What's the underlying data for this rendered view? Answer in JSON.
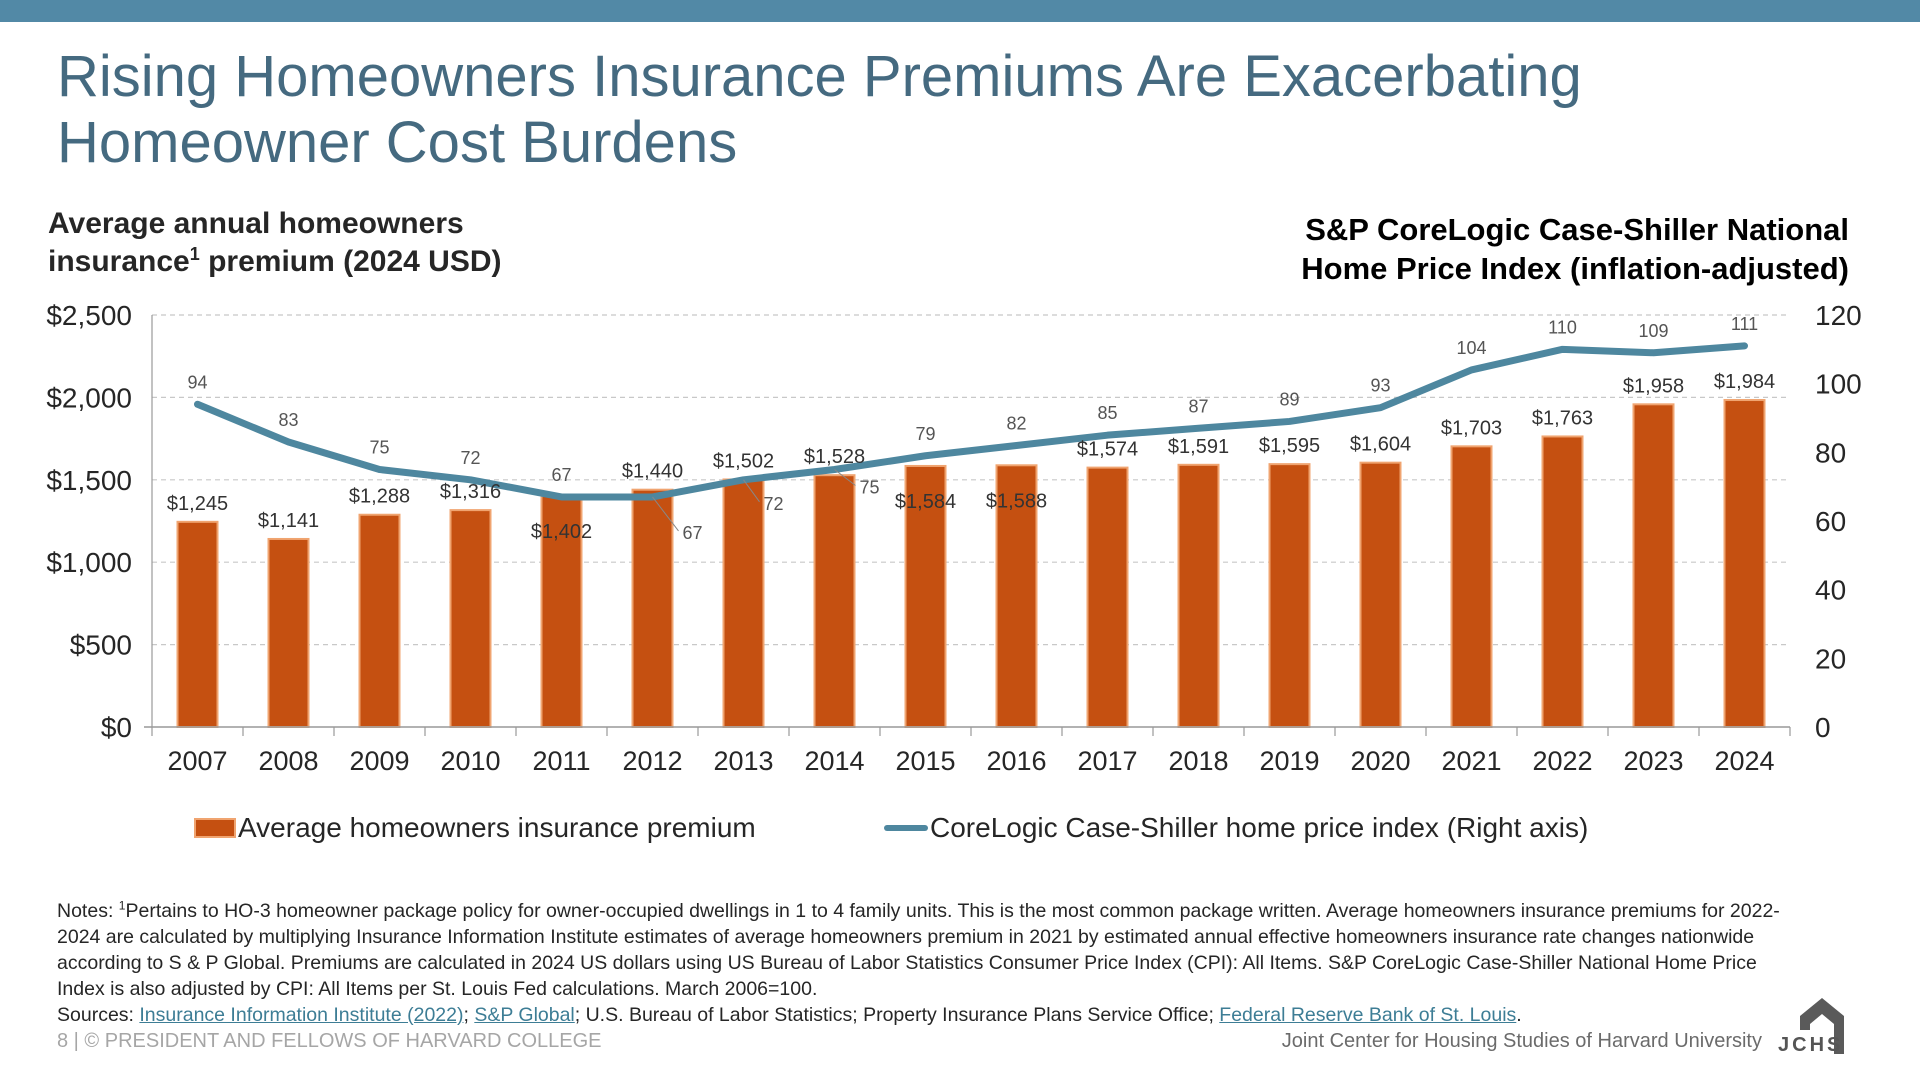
{
  "header": {
    "title_line1": "Rising Homeowners Insurance Premiums Are Exacerbating",
    "title_line2": "Homeowner Cost Burdens"
  },
  "left_subtitle": {
    "line1": "Average annual homeowners",
    "line2_pre": "insurance",
    "line2_sup": "1",
    "line2_post": " premium (2024 USD)"
  },
  "right_subtitle": {
    "line1": "S&P CoreLogic Case-Shiller National",
    "line2": "Home Price Index (inflation-adjusted)"
  },
  "colors": {
    "topbar": "#5289a6",
    "title": "#456a80",
    "bar": "#c55011",
    "bar_edge": "#f0a470",
    "line": "#4e879f",
    "link": "#3d7d95"
  },
  "chart_data": {
    "type": "bar+line",
    "categories": [
      "2007",
      "2008",
      "2009",
      "2010",
      "2011",
      "2012",
      "2013",
      "2014",
      "2015",
      "2016",
      "2017",
      "2018",
      "2019",
      "2020",
      "2021",
      "2022",
      "2023",
      "2024"
    ],
    "series": [
      {
        "name": "Average homeowners insurance premium",
        "type": "bar",
        "axis": "left",
        "values": [
          1245,
          1141,
          1288,
          1316,
          1402,
          1440,
          1502,
          1528,
          1584,
          1588,
          1574,
          1591,
          1595,
          1604,
          1703,
          1763,
          1958,
          1984
        ],
        "labels": [
          "$1,245",
          "$1,141",
          "$1,288",
          "$1,316",
          "$1,402",
          "$1,440",
          "$1,502",
          "$1,528",
          "$1,584",
          "$1,588",
          "$1,574",
          "$1,591",
          "$1,595",
          "$1,604",
          "$1,703",
          "$1,763",
          "$1,958",
          "$1,984"
        ]
      },
      {
        "name": "CoreLogic Case-Shiller home price index (Right axis)",
        "type": "line",
        "axis": "right",
        "values": [
          94,
          83,
          75,
          72,
          67,
          67,
          72,
          75,
          79,
          82,
          85,
          87,
          89,
          93,
          104,
          110,
          109,
          111
        ]
      }
    ],
    "left_axis": {
      "range": [
        0,
        2500
      ],
      "ticks": [
        0,
        500,
        1000,
        1500,
        2000,
        2500
      ],
      "tick_labels": [
        "$0",
        "$500",
        "$1,000",
        "$1,500",
        "$2,000",
        "$2,500"
      ]
    },
    "right_axis": {
      "range": [
        0,
        120
      ],
      "ticks": [
        0,
        20,
        40,
        60,
        80,
        100,
        120
      ],
      "tick_labels": [
        "0",
        "20",
        "40",
        "60",
        "80",
        "100",
        "120"
      ]
    },
    "grid": true,
    "legend": "bottom",
    "title_left": "Average annual homeowners insurance1 premium (2024 USD)",
    "title_right": "S&P CoreLogic Case-Shiller National Home Price Index (inflation-adjusted)"
  },
  "legend": {
    "bar_label": "Average homeowners insurance premium",
    "line_label": "CoreLogic Case-Shiller home price index (Right axis)"
  },
  "notes": {
    "prefix": "Notes: ",
    "sup": "1",
    "text": "Pertains to HO-3 homeowner package policy for owner-occupied dwellings in 1 to 4 family units. This is the most common package written. Average homeowners insurance premiums for 2022-2024 are calculated by multiplying Insurance Information Institute estimates of average homeowners premium in 2021 by estimated annual effective homeowners insurance rate changes nationwide according to S & P Global. Premiums are calculated in 2024 US dollars using US Bureau of Labor Statistics Consumer Price Index (CPI): All Items. S&P CoreLogic Case-Shiller National Home Price Index is also adjusted by CPI: All Items per St. Louis Fed calculations. March 2006=100.",
    "sources_prefix": "Sources: ",
    "link1": "Insurance Information Institute (2022)",
    "sep1": "; ",
    "link2": "S&P Global",
    "mid": "; U.S. Bureau of Labor Statistics; Property Insurance Plans Service Office; ",
    "link3": "Federal Reserve Bank of St. Louis",
    "end": "."
  },
  "footer": {
    "left": "8 | © PRESIDENT AND FELLOWS OF HARVARD COLLEGE",
    "right": "Joint Center for Housing Studies of Harvard University",
    "logo_text": "JCHS"
  }
}
